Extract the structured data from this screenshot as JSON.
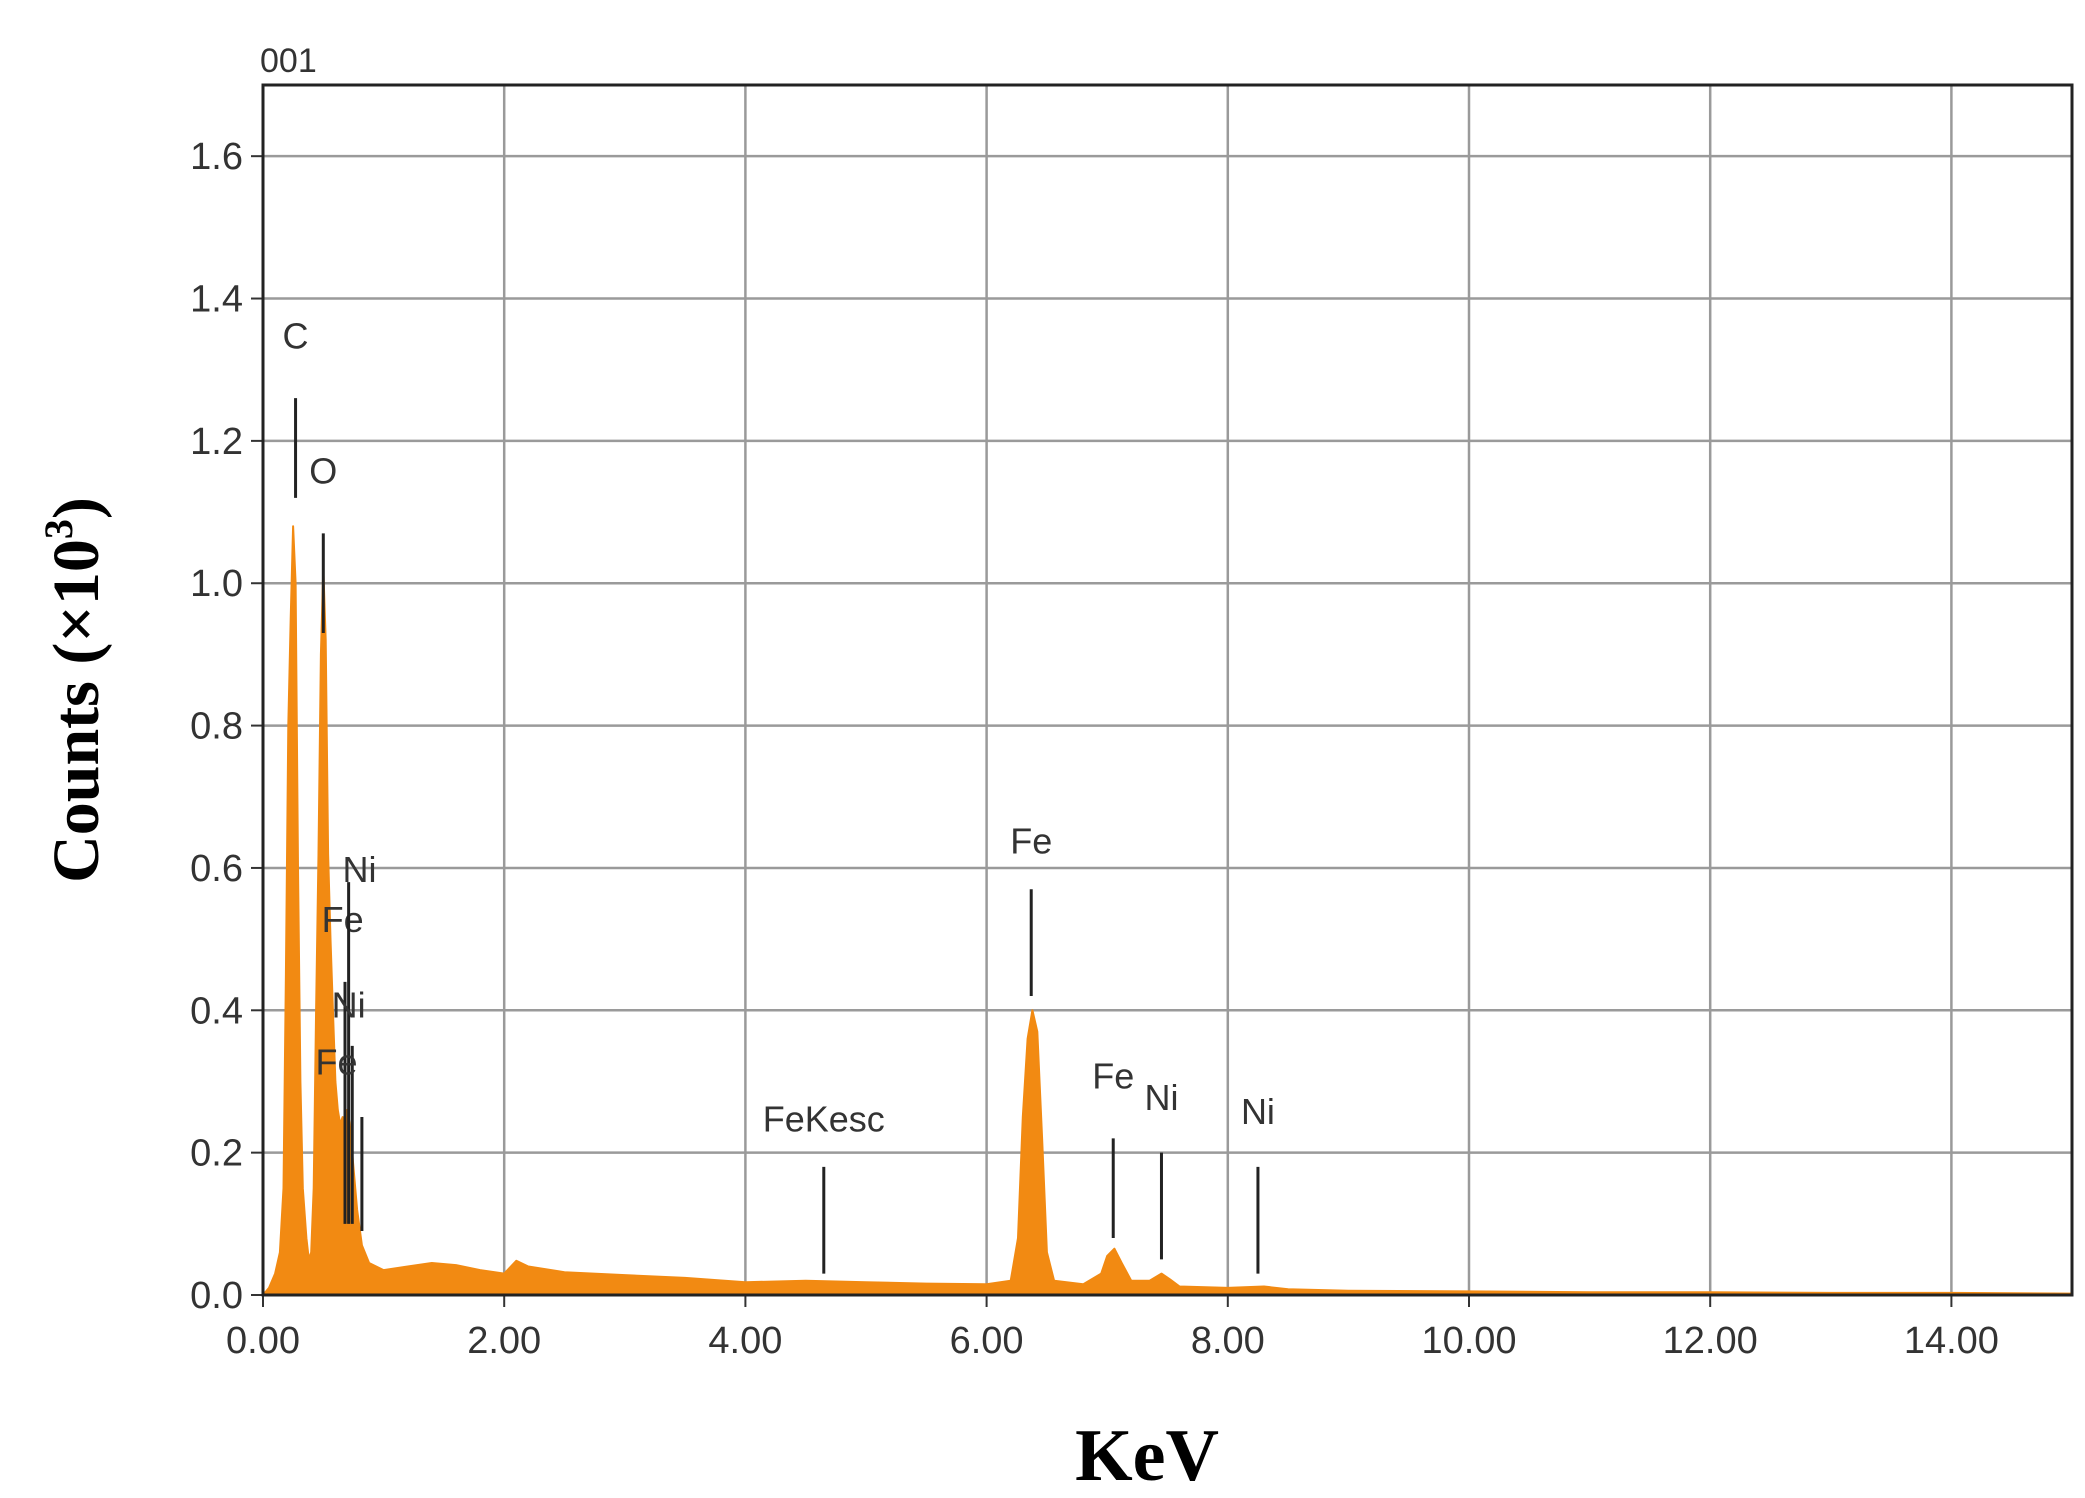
{
  "chart_data": {
    "type": "area",
    "title": "001",
    "xlabel": "KeV",
    "ylabel_main": "Counts (×10",
    "ylabel_sup": "3",
    "ylabel_close": ")",
    "xlim": [
      0,
      15
    ],
    "ylim": [
      0,
      1.7
    ],
    "grid": true,
    "legend": "none",
    "x_ticks": [
      {
        "value": 0,
        "label": "0.00"
      },
      {
        "value": 2,
        "label": "2.00"
      },
      {
        "value": 4,
        "label": "4.00"
      },
      {
        "value": 6,
        "label": "6.00"
      },
      {
        "value": 8,
        "label": "8.00"
      },
      {
        "value": 10,
        "label": "10.00"
      },
      {
        "value": 12,
        "label": "12.00"
      },
      {
        "value": 14,
        "label": "14.00"
      }
    ],
    "y_ticks": [
      {
        "value": 0.0,
        "label": "0.0"
      },
      {
        "value": 0.2,
        "label": "0.2"
      },
      {
        "value": 0.4,
        "label": "0.4"
      },
      {
        "value": 0.6,
        "label": "0.6"
      },
      {
        "value": 0.8,
        "label": "0.8"
      },
      {
        "value": 1.0,
        "label": "1.0"
      },
      {
        "value": 1.2,
        "label": "1.2"
      },
      {
        "value": 1.4,
        "label": "1.4"
      },
      {
        "value": 1.6,
        "label": "1.6"
      }
    ],
    "spectrum_color": "#f28a12",
    "spectrum": [
      [
        0.0,
        0.0
      ],
      [
        0.05,
        0.01
      ],
      [
        0.1,
        0.03
      ],
      [
        0.14,
        0.06
      ],
      [
        0.17,
        0.15
      ],
      [
        0.19,
        0.45
      ],
      [
        0.21,
        0.8
      ],
      [
        0.23,
        0.95
      ],
      [
        0.25,
        1.08
      ],
      [
        0.27,
        1.0
      ],
      [
        0.29,
        0.6
      ],
      [
        0.31,
        0.3
      ],
      [
        0.33,
        0.15
      ],
      [
        0.36,
        0.08
      ],
      [
        0.38,
        0.05
      ],
      [
        0.4,
        0.06
      ],
      [
        0.42,
        0.15
      ],
      [
        0.44,
        0.4
      ],
      [
        0.46,
        0.62
      ],
      [
        0.48,
        0.9
      ],
      [
        0.5,
        1.02
      ],
      [
        0.52,
        0.92
      ],
      [
        0.54,
        0.62
      ],
      [
        0.56,
        0.5
      ],
      [
        0.58,
        0.4
      ],
      [
        0.6,
        0.3
      ],
      [
        0.62,
        0.26
      ],
      [
        0.64,
        0.24
      ],
      [
        0.66,
        0.25
      ],
      [
        0.68,
        0.22
      ],
      [
        0.7,
        0.26
      ],
      [
        0.72,
        0.24
      ],
      [
        0.75,
        0.18
      ],
      [
        0.78,
        0.12
      ],
      [
        0.82,
        0.07
      ],
      [
        0.88,
        0.045
      ],
      [
        1.0,
        0.035
      ],
      [
        1.2,
        0.04
      ],
      [
        1.4,
        0.045
      ],
      [
        1.6,
        0.042
      ],
      [
        1.8,
        0.035
      ],
      [
        2.0,
        0.03
      ],
      [
        2.1,
        0.048
      ],
      [
        2.2,
        0.04
      ],
      [
        2.5,
        0.032
      ],
      [
        3.0,
        0.028
      ],
      [
        3.5,
        0.024
      ],
      [
        4.0,
        0.018
      ],
      [
        4.5,
        0.02
      ],
      [
        5.0,
        0.018
      ],
      [
        5.5,
        0.016
      ],
      [
        6.0,
        0.015
      ],
      [
        6.2,
        0.02
      ],
      [
        6.26,
        0.08
      ],
      [
        6.3,
        0.25
      ],
      [
        6.34,
        0.36
      ],
      [
        6.38,
        0.4
      ],
      [
        6.42,
        0.37
      ],
      [
        6.46,
        0.22
      ],
      [
        6.5,
        0.06
      ],
      [
        6.56,
        0.02
      ],
      [
        6.8,
        0.015
      ],
      [
        6.95,
        0.03
      ],
      [
        7.0,
        0.055
      ],
      [
        7.06,
        0.065
      ],
      [
        7.12,
        0.045
      ],
      [
        7.2,
        0.02
      ],
      [
        7.35,
        0.02
      ],
      [
        7.45,
        0.03
      ],
      [
        7.52,
        0.022
      ],
      [
        7.6,
        0.012
      ],
      [
        8.0,
        0.01
      ],
      [
        8.3,
        0.012
      ],
      [
        8.5,
        0.008
      ],
      [
        9.0,
        0.006
      ],
      [
        10.0,
        0.005
      ],
      [
        11.0,
        0.004
      ],
      [
        12.0,
        0.004
      ],
      [
        13.0,
        0.003
      ],
      [
        14.0,
        0.003
      ],
      [
        15.0,
        0.002
      ]
    ],
    "peak_markers": [
      {
        "x": 0.27,
        "y_top": 1.26,
        "y_bottom": 1.12,
        "label": "C",
        "label_x": 0.27,
        "label_y": 1.33
      },
      {
        "x": 0.5,
        "y_top": 1.07,
        "y_bottom": 0.93,
        "label": "O",
        "label_x": 0.5,
        "label_y": 1.14
      },
      {
        "x": 0.68,
        "y_top": 0.44,
        "y_bottom": 0.1,
        "label": "Fe",
        "label_x": 0.66,
        "label_y": 0.51
      },
      {
        "x": 0.71,
        "y_top": 0.58,
        "y_bottom": 0.1,
        "label": "Ni",
        "label_x": 0.8,
        "label_y": 0.58
      },
      {
        "x": 0.74,
        "y_top": 0.35,
        "y_bottom": 0.1,
        "label": "Ni",
        "label_x": 0.71,
        "label_y": 0.39
      },
      {
        "x": 0.82,
        "y_top": 0.25,
        "y_bottom": 0.09,
        "label": "Fe",
        "label_x": 0.61,
        "label_y": 0.31
      },
      {
        "x": 4.65,
        "y_top": 0.18,
        "y_bottom": 0.03,
        "label": "FeKesc",
        "label_x": 4.65,
        "label_y": 0.23
      },
      {
        "x": 6.37,
        "y_top": 0.57,
        "y_bottom": 0.42,
        "label": "Fe",
        "label_x": 6.37,
        "label_y": 0.62
      },
      {
        "x": 7.05,
        "y_top": 0.22,
        "y_bottom": 0.08,
        "label": "Fe",
        "label_x": 7.05,
        "label_y": 0.29
      },
      {
        "x": 7.45,
        "y_top": 0.2,
        "y_bottom": 0.05,
        "label": "Ni",
        "label_x": 7.45,
        "label_y": 0.26
      },
      {
        "x": 8.25,
        "y_top": 0.18,
        "y_bottom": 0.03,
        "label": "Ni",
        "label_x": 8.25,
        "label_y": 0.24
      }
    ]
  }
}
